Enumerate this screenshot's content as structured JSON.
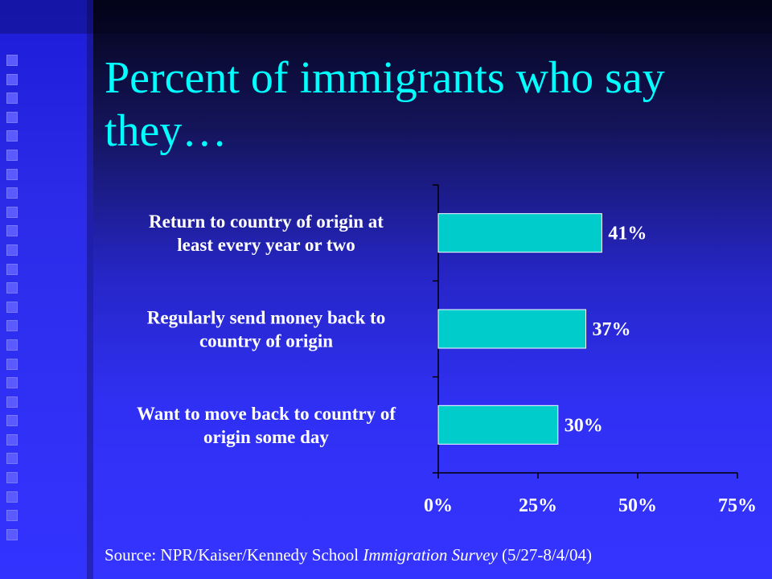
{
  "slide": {
    "title": "Percent of immigrants who say they…",
    "source_prefix": "Source: NPR/Kaiser/Kennedy School ",
    "source_italic": "Immigration Survey",
    "source_suffix": " (5/27-8/4/04)"
  },
  "colors": {
    "title": "#00ffff",
    "bar_fill": "#00cccc",
    "text": "#ffffff",
    "background": "#3434ff"
  },
  "chart_data": {
    "type": "bar",
    "orientation": "horizontal",
    "categories": [
      "Return to country of origin at least every year or two",
      "Regularly send money back to country of origin",
      "Want to move back to country of origin some day"
    ],
    "category_lines": [
      [
        "Return to country of origin at",
        "least every year or two"
      ],
      [
        "Regularly send money back to",
        "country of origin"
      ],
      [
        "Want to move back to country of",
        "origin some day"
      ]
    ],
    "values": [
      41,
      37,
      30
    ],
    "value_labels": [
      "41%",
      "37%",
      "30%"
    ],
    "xlim": [
      0,
      75
    ],
    "xticks": [
      0,
      25,
      50,
      75
    ],
    "xtick_labels": [
      "0%",
      "25%",
      "50%",
      "75%"
    ],
    "title": "Percent of immigrants who say they…",
    "xlabel": "",
    "ylabel": "",
    "grid": false,
    "legend": "none"
  }
}
